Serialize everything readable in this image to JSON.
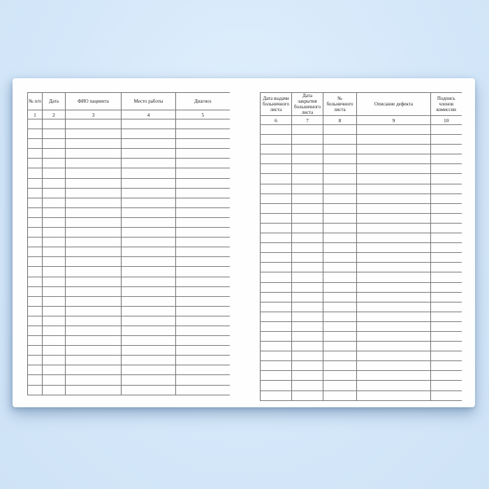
{
  "document": {
    "description": "Open blank journal spread for registering patients' sick-leave certificates",
    "colors": {
      "background": "#d5e8fa",
      "paper": "#fefefe",
      "grid_line": "#6f6f6f"
    },
    "left_table": {
      "columns": [
        {
          "header": "№ п/п",
          "num": "1"
        },
        {
          "header": "Дата",
          "num": "2"
        },
        {
          "header": "ФИО пациента",
          "num": "3"
        },
        {
          "header": "Место работы",
          "num": "4"
        },
        {
          "header": "Диагноз",
          "num": "5"
        }
      ],
      "blank_rows": 28
    },
    "right_table": {
      "columns": [
        {
          "header": "Дата выдачи больничного листа",
          "num": "6"
        },
        {
          "header": "Дата закрытия больничного листа",
          "num": "7"
        },
        {
          "header": "№ больничного листа",
          "num": "8"
        },
        {
          "header": "Описание дефекта",
          "num": "9"
        },
        {
          "header": "Подпись членов комиссии",
          "num": "10"
        }
      ],
      "blank_rows": 28
    }
  }
}
